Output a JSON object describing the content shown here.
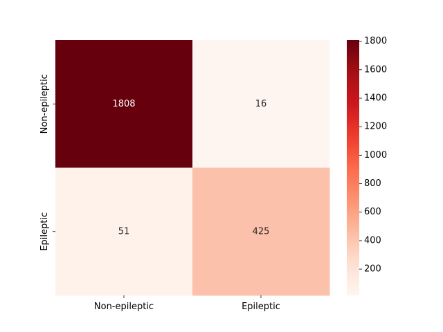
{
  "chart_data": {
    "type": "heatmap",
    "title": "",
    "xlabel": "",
    "ylabel": "",
    "x_categories": [
      "Non-epileptic",
      "Epileptic"
    ],
    "y_categories": [
      "Non-epileptic",
      "Epileptic"
    ],
    "values": [
      [
        1808,
        16
      ],
      [
        51,
        425
      ]
    ],
    "annotations": [
      [
        "1808",
        "16"
      ],
      [
        "51",
        "425"
      ]
    ],
    "colormap": "Reds",
    "vmin": 16,
    "vmax": 1808,
    "colorbar": {
      "ticks": [
        200,
        400,
        600,
        800,
        1000,
        1200,
        1400,
        1600,
        1800
      ],
      "tick_labels": [
        "200",
        "400",
        "600",
        "800",
        "1000",
        "1200",
        "1400",
        "1600",
        "1800"
      ]
    },
    "grid": false,
    "legend": "none"
  }
}
